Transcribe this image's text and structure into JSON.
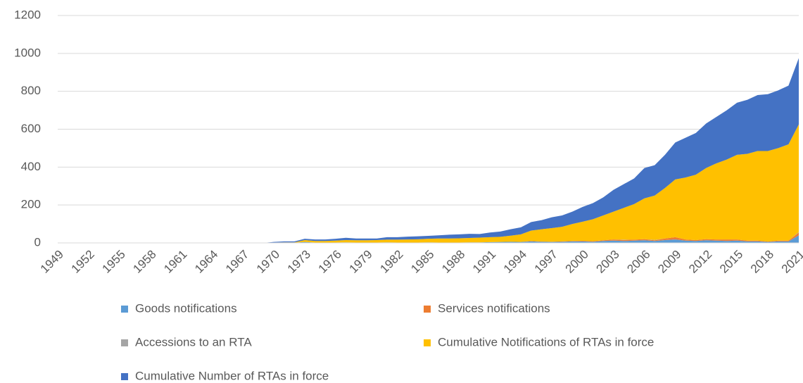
{
  "chart_data": {
    "type": "area",
    "stacked": true,
    "categories": [
      "1949",
      null,
      null,
      "1952",
      null,
      null,
      "1955",
      null,
      null,
      "1958",
      null,
      null,
      "1961",
      null,
      null,
      "1964",
      null,
      null,
      "1967",
      null,
      null,
      "1970",
      null,
      null,
      "1973",
      null,
      null,
      "1976",
      null,
      null,
      "1979",
      null,
      null,
      "1982",
      null,
      null,
      "1985",
      null,
      null,
      "1988",
      null,
      null,
      "1991",
      null,
      null,
      "1994",
      null,
      null,
      "1997",
      null,
      null,
      "2000",
      null,
      null,
      "2003",
      null,
      null,
      "2006",
      null,
      null,
      "2009",
      null,
      null,
      "2012",
      null,
      null,
      "2015",
      null,
      null,
      "2018",
      null,
      null,
      "2021"
    ],
    "series": [
      {
        "name": "Goods notifications",
        "color": "#5b9bd5",
        "values": [
          0,
          0,
          0,
          0,
          0,
          0,
          0,
          0,
          0,
          0,
          0,
          0,
          0,
          0,
          0,
          0,
          0,
          0,
          0,
          0,
          0,
          1,
          1,
          1,
          5,
          2,
          2,
          2,
          3,
          2,
          2,
          2,
          3,
          2,
          2,
          2,
          3,
          2,
          2,
          2,
          3,
          3,
          4,
          5,
          6,
          5,
          8,
          6,
          5,
          6,
          8,
          8,
          6,
          10,
          12,
          10,
          12,
          14,
          10,
          15,
          18,
          12,
          10,
          14,
          12,
          10,
          12,
          8,
          8,
          5,
          8,
          8,
          40
        ]
      },
      {
        "name": "Services notifications",
        "color": "#ed7d31",
        "values": [
          0,
          0,
          0,
          0,
          0,
          0,
          0,
          0,
          0,
          0,
          0,
          0,
          0,
          0,
          0,
          0,
          0,
          0,
          0,
          0,
          0,
          0,
          0,
          0,
          0,
          0,
          0,
          0,
          0,
          0,
          0,
          0,
          0,
          0,
          0,
          0,
          0,
          0,
          0,
          0,
          0,
          0,
          0,
          0,
          0,
          0,
          2,
          1,
          1,
          2,
          2,
          3,
          3,
          4,
          6,
          6,
          5,
          6,
          4,
          8,
          12,
          6,
          5,
          6,
          6,
          8,
          6,
          4,
          4,
          2,
          4,
          4,
          15
        ]
      },
      {
        "name": "Accessions to an RTA",
        "color": "#a5a5a5",
        "values": [
          0,
          0,
          0,
          0,
          0,
          0,
          0,
          0,
          0,
          0,
          0,
          0,
          0,
          0,
          0,
          0,
          0,
          0,
          0,
          0,
          0,
          0,
          0,
          0,
          0,
          0,
          0,
          0,
          0,
          0,
          0,
          0,
          0,
          0,
          0,
          0,
          0,
          0,
          0,
          0,
          0,
          0,
          0,
          0,
          0,
          0,
          0,
          0,
          0,
          0,
          0,
          0,
          0,
          0,
          0,
          1,
          0,
          0,
          2,
          0,
          0,
          0,
          0,
          0,
          0,
          0,
          0,
          0,
          0,
          0,
          0,
          0,
          2
        ]
      },
      {
        "name": "Cumulative Notifications of RTAs in force",
        "color": "#ffc000",
        "values": [
          0,
          0,
          0,
          0,
          0,
          0,
          0,
          0,
          0,
          0,
          0,
          0,
          0,
          0,
          0,
          0,
          0,
          0,
          0,
          0,
          0,
          1,
          2,
          2,
          10,
          8,
          8,
          10,
          12,
          12,
          12,
          13,
          14,
          15,
          16,
          17,
          19,
          21,
          21,
          22,
          23,
          25,
          26,
          27,
          32,
          40,
          55,
          65,
          72,
          77,
          90,
          101,
          116,
          131,
          147,
          168,
          188,
          215,
          234,
          267,
          305,
          327,
          345,
          375,
          402,
          422,
          447,
          458,
          473,
          478,
          488,
          508,
          568
        ]
      },
      {
        "name": "Cumulative Number of RTAs in force",
        "color": "#4472c4",
        "values": [
          0,
          0,
          0,
          0,
          0,
          0,
          0,
          0,
          0,
          0,
          0,
          0,
          0,
          0,
          0,
          0,
          0,
          0,
          0,
          0,
          0,
          3,
          5,
          5,
          7,
          8,
          8,
          10,
          12,
          9,
          9,
          8,
          13,
          13,
          15,
          16,
          15,
          17,
          20,
          21,
          22,
          19,
          25,
          28,
          34,
          37,
          45,
          48,
          57,
          60,
          65,
          78,
          85,
          95,
          115,
          125,
          135,
          160,
          160,
          175,
          195,
          210,
          220,
          235,
          245,
          260,
          275,
          285,
          295,
          300,
          305,
          310,
          350
        ]
      }
    ],
    "ylim": [
      0,
      1200
    ],
    "yticks": [
      0,
      200,
      400,
      600,
      800,
      1000,
      1200
    ],
    "grid": true,
    "legend": "bottom"
  }
}
